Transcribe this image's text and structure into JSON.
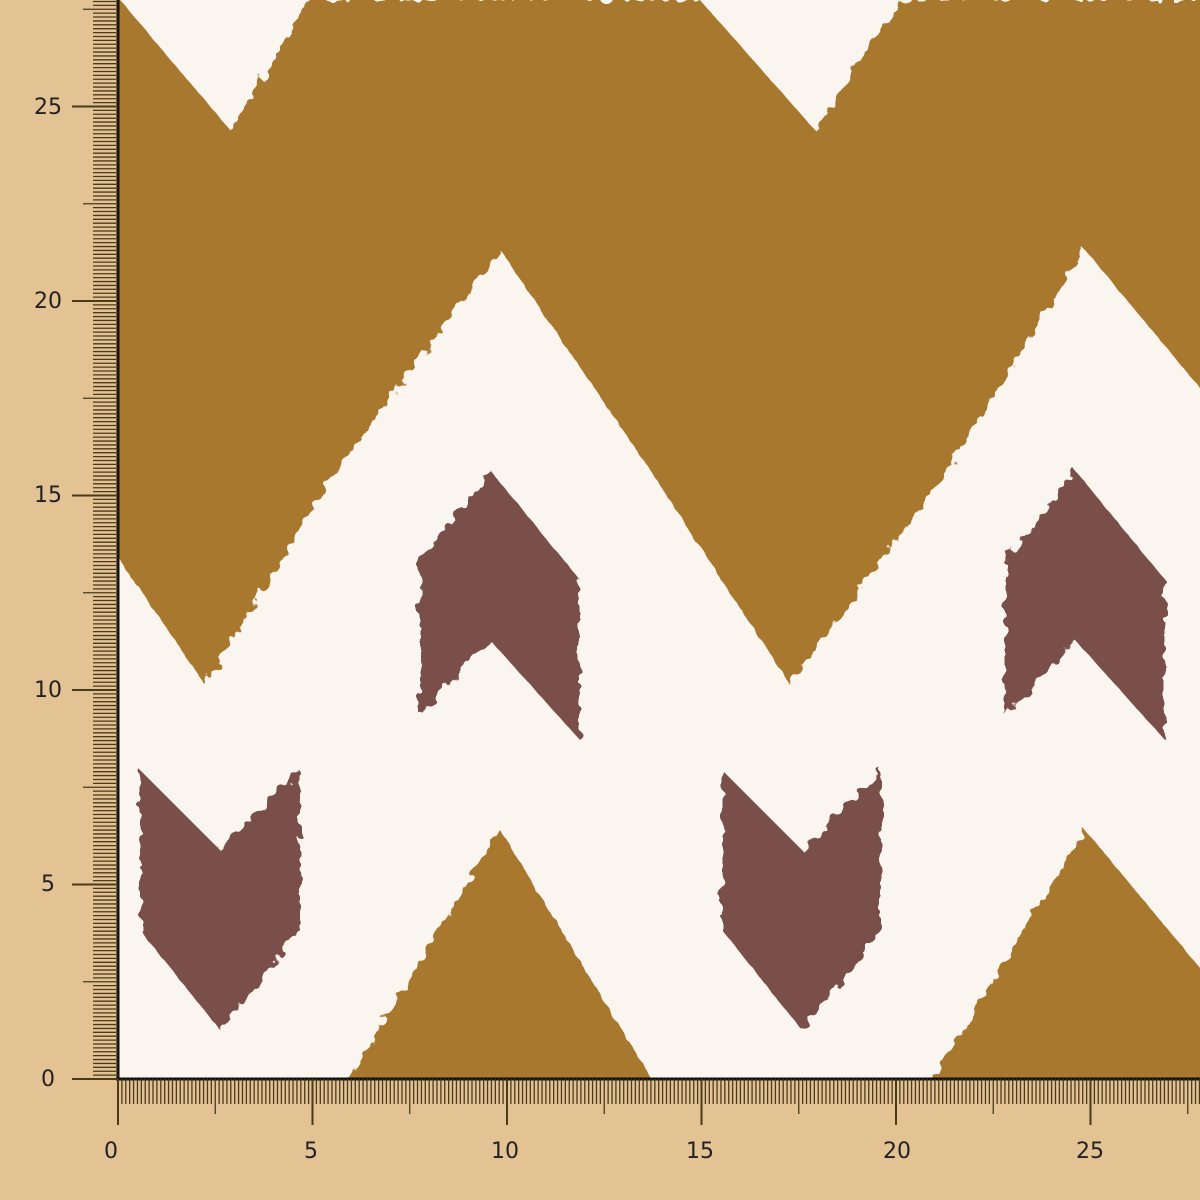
{
  "rulers": {
    "vertical_labels": [
      "0",
      "5",
      "10",
      "15",
      "20",
      "25"
    ],
    "horizontal_labels": [
      "0",
      "5",
      "10",
      "15",
      "20",
      "25"
    ]
  },
  "colors": {
    "background": "#e3c293",
    "fabric_base": "#fbf5ef",
    "mustard": "#a8782e",
    "plum_brown": "#7a5048",
    "tick": "#4a3b1c"
  }
}
